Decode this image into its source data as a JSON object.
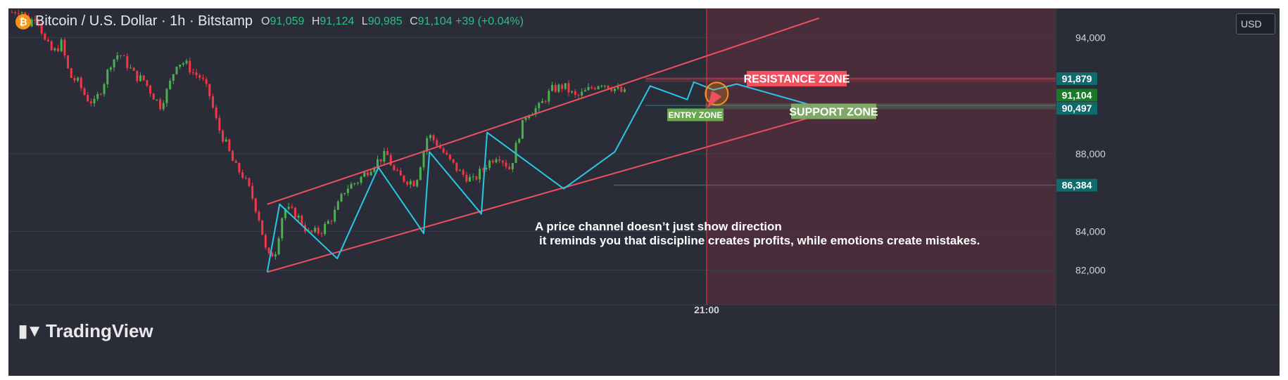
{
  "header": {
    "symbol_icon": "bitcoin-icon",
    "title": "Bitcoin / U.S. Dollar · 1h · Bitstamp",
    "o_label": "O",
    "o_value": "91,059",
    "h_label": "H",
    "h_value": "91,124",
    "l_label": "L",
    "l_value": "90,985",
    "c_label": "C",
    "c_value": "91,104",
    "change": "+39 (+0.04%)"
  },
  "currency_button": "USD",
  "logo_text": "TradingView",
  "annotations": {
    "resistance_zone": "RESISTANCE ZONE",
    "support_zone": "SUPPORT ZONE",
    "entry_zone": "ENTRY ZONE",
    "note_line1": "A price channel doesn’t just show direction",
    "note_line2": "it reminds you that discipline creates profits, while emotions create mistakes."
  },
  "price_labels": {
    "resistance": "91,879",
    "last_price": "91,104",
    "support": "90,497",
    "low_marker": "86,384"
  },
  "colors": {
    "background": "#2a2d38",
    "bull": "#4caf50",
    "bear": "#f23645",
    "channel": "#f0505e",
    "zigzag": "#29c6e6",
    "future_region": "#4a2d3a",
    "resistance_label": "#f0505e",
    "support_label": "#7fa866",
    "price_tag": "#0f6b6b",
    "last_tag": "#1a7a2a"
  },
  "chart_data": {
    "type": "candlestick",
    "symbol": "Bitcoin / U.S. Dollar",
    "interval": "1h",
    "exchange": "Bitstamp",
    "x_tick_labels": [
      "21:00"
    ],
    "y_tick_labels": [
      "82,000",
      "84,000",
      "88,000",
      "94,000"
    ],
    "y_range": [
      80500,
      95500
    ],
    "price_path": [
      [
        0,
        95300
      ],
      [
        10,
        95500
      ],
      [
        20,
        94700
      ],
      [
        30,
        95200
      ],
      [
        40,
        93800
      ],
      [
        50,
        93200
      ],
      [
        60,
        93700
      ],
      [
        70,
        92000
      ],
      [
        80,
        91700
      ],
      [
        90,
        90900
      ],
      [
        100,
        90600
      ],
      [
        110,
        91500
      ],
      [
        120,
        92700
      ],
      [
        130,
        93200
      ],
      [
        140,
        92600
      ],
      [
        150,
        92000
      ],
      [
        160,
        91800
      ],
      [
        170,
        91100
      ],
      [
        180,
        90500
      ],
      [
        190,
        91400
      ],
      [
        200,
        92700
      ],
      [
        210,
        92700
      ],
      [
        220,
        92200
      ],
      [
        230,
        91900
      ],
      [
        240,
        91000
      ],
      [
        250,
        89400
      ],
      [
        260,
        88500
      ],
      [
        270,
        87400
      ],
      [
        280,
        86900
      ],
      [
        290,
        86000
      ],
      [
        300,
        84700
      ],
      [
        305,
        83700
      ],
      [
        310,
        82600
      ],
      [
        320,
        83000
      ],
      [
        330,
        85200
      ],
      [
        345,
        84900
      ],
      [
        360,
        83900
      ],
      [
        375,
        84000
      ],
      [
        390,
        84800
      ],
      [
        405,
        86200
      ],
      [
        420,
        86600
      ],
      [
        440,
        87500
      ],
      [
        455,
        88000
      ],
      [
        465,
        87000
      ],
      [
        475,
        86700
      ],
      [
        490,
        86500
      ],
      [
        505,
        89000
      ],
      [
        515,
        88600
      ],
      [
        530,
        87700
      ],
      [
        545,
        87000
      ],
      [
        560,
        86600
      ],
      [
        575,
        87400
      ],
      [
        590,
        88000
      ],
      [
        605,
        87200
      ],
      [
        615,
        88900
      ],
      [
        625,
        90100
      ],
      [
        640,
        90400
      ],
      [
        655,
        91300
      ],
      [
        670,
        91500
      ],
      [
        685,
        90900
      ],
      [
        700,
        91300
      ],
      [
        715,
        91700
      ],
      [
        730,
        91400
      ],
      [
        740,
        91200
      ],
      [
        745,
        91104
      ]
    ],
    "channel": {
      "upper": [
        [
          310,
          85400
        ],
        [
          980,
          95000
        ]
      ],
      "lower": [
        [
          310,
          81900
        ],
        [
          980,
          90000
        ]
      ]
    },
    "zigzag": [
      [
        310,
        81900
      ],
      [
        325,
        85400
      ],
      [
        395,
        82600
      ],
      [
        445,
        87300
      ],
      [
        500,
        83900
      ],
      [
        507,
        88100
      ],
      [
        570,
        84900
      ],
      [
        577,
        89100
      ],
      [
        670,
        86200
      ],
      [
        732,
        88100
      ],
      [
        775,
        91500
      ],
      [
        820,
        90800
      ],
      [
        828,
        91700
      ],
      [
        852,
        91300
      ],
      [
        880,
        91600
      ],
      [
        980,
        90400
      ],
      [
        990,
        90300
      ]
    ],
    "horizontal_levels": [
      91879,
      90497,
      86384
    ],
    "zones": [
      {
        "name": "RESISTANCE ZONE",
        "low": 91700,
        "high": 91950
      },
      {
        "name": "SUPPORT ZONE",
        "low": 90300,
        "high": 90600
      }
    ],
    "entry_point": {
      "x": 855,
      "y": 91100
    },
    "last_price": 91104
  }
}
